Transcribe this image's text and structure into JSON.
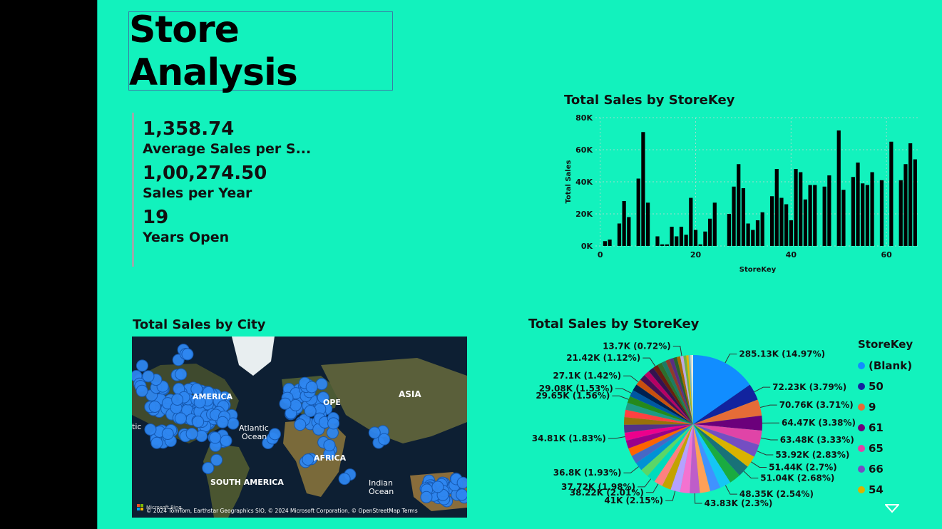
{
  "title": "Store Analysis",
  "kpis": [
    {
      "value": "1,358.74",
      "label": "Average Sales per S..."
    },
    {
      "value": "1,00,274.50",
      "label": "Sales per Year"
    },
    {
      "value": "19",
      "label": "Years Open"
    }
  ],
  "bar_title": "Total Sales by StoreKey",
  "map_title": "Total Sales by City",
  "map": {
    "labels": [
      "AMERICA",
      "Atlantic",
      "Ocean",
      "OPE",
      "ASIA",
      "AFRICA",
      "SOUTH AMERICA",
      "Indian",
      "Ocean",
      "tic"
    ],
    "credit": "© 2024 TomTom, Earthstar Geographics SIO, © 2024 Microsoft Corporation, © OpenStreetMap  Terms",
    "brand": "Microsoft Bing"
  },
  "pie_title": "Total Sales by StoreKey",
  "legend": {
    "title": "StoreKey",
    "items": [
      {
        "label": "(Blank)",
        "color": "#118DFF"
      },
      {
        "label": "50",
        "color": "#12239E"
      },
      {
        "label": "9",
        "color": "#E66C37"
      },
      {
        "label": "61",
        "color": "#6B007B"
      },
      {
        "label": "65",
        "color": "#E044A7"
      },
      {
        "label": "66",
        "color": "#744EC2"
      },
      {
        "label": "54",
        "color": "#D9B300"
      }
    ]
  },
  "chart_data": [
    {
      "type": "bar",
      "title": "Total Sales by StoreKey",
      "xlabel": "StoreKey",
      "ylabel": "Total Sales",
      "ylim": [
        0,
        80000
      ],
      "yticks": [
        "0K",
        "20K",
        "40K",
        "60K",
        "80K"
      ],
      "ytick_values": [
        0,
        20000,
        40000,
        60000,
        80000
      ],
      "xticks": [
        0,
        20,
        40,
        60
      ],
      "xlim": [
        -1,
        67
      ],
      "grid": true,
      "points": [
        [
          1,
          3000
        ],
        [
          2,
          4000
        ],
        [
          4,
          14000
        ],
        [
          5,
          28000
        ],
        [
          6,
          18000
        ],
        [
          8,
          42000
        ],
        [
          9,
          71000
        ],
        [
          10,
          27000
        ],
        [
          12,
          6000
        ],
        [
          13,
          1000
        ],
        [
          14,
          1000
        ],
        [
          15,
          12000
        ],
        [
          16,
          6000
        ],
        [
          17,
          12000
        ],
        [
          18,
          7000
        ],
        [
          19,
          30000
        ],
        [
          20,
          10000
        ],
        [
          21,
          1000
        ],
        [
          22,
          9000
        ],
        [
          23,
          17000
        ],
        [
          24,
          27000
        ],
        [
          27,
          20000
        ],
        [
          28,
          37000
        ],
        [
          29,
          51000
        ],
        [
          30,
          36000
        ],
        [
          31,
          14000
        ],
        [
          32,
          10000
        ],
        [
          33,
          16000
        ],
        [
          34,
          21000
        ],
        [
          36,
          31000
        ],
        [
          37,
          48000
        ],
        [
          38,
          30000
        ],
        [
          39,
          26000
        ],
        [
          40,
          16000
        ],
        [
          41,
          48000
        ],
        [
          42,
          46000
        ],
        [
          43,
          29000
        ],
        [
          44,
          38000
        ],
        [
          45,
          38000
        ],
        [
          47,
          37000
        ],
        [
          48,
          44000
        ],
        [
          50,
          72000
        ],
        [
          51,
          35000
        ],
        [
          53,
          43000
        ],
        [
          54,
          52000
        ],
        [
          55,
          39000
        ],
        [
          56,
          38000
        ],
        [
          57,
          46000
        ],
        [
          59,
          41000
        ],
        [
          61,
          65000
        ],
        [
          63,
          41000
        ],
        [
          64,
          51000
        ],
        [
          65,
          64000
        ],
        [
          66,
          54000
        ]
      ]
    },
    {
      "type": "pie",
      "title": "Total Sales by StoreKey",
      "slices": [
        {
          "label": "285.13K (14.97%)",
          "value": 285130,
          "color": "#118DFF"
        },
        {
          "label": "72.23K (3.79%)",
          "value": 72230,
          "color": "#12239E"
        },
        {
          "label": "70.76K (3.71%)",
          "value": 70760,
          "color": "#E66C37"
        },
        {
          "label": "64.47K (3.38%)",
          "value": 64470,
          "color": "#6B007B"
        },
        {
          "label": "63.48K (3.33%)",
          "value": 63480,
          "color": "#E044A7"
        },
        {
          "label": "53.92K (2.83%)",
          "value": 53920,
          "color": "#744EC2"
        },
        {
          "label": "51.44K (2.7%)",
          "value": 51440,
          "color": "#D9B300"
        },
        {
          "label": "51.04K (2.68%)",
          "value": 51040,
          "color": "#197278"
        },
        {
          "label": "",
          "value": 49500,
          "color": "#1AAB40"
        },
        {
          "label": "48.35K (2.54%)",
          "value": 48350,
          "color": "#15C6F4"
        },
        {
          "label": "",
          "value": 46000,
          "color": "#4092FF"
        },
        {
          "label": "",
          "value": 45000,
          "color": "#FFA058"
        },
        {
          "label": "43.83K (2.3%)",
          "value": 43830,
          "color": "#BE5DC9"
        },
        {
          "label": "",
          "value": 42500,
          "color": "#F472D0"
        },
        {
          "label": "41K (2.15%)",
          "value": 41000,
          "color": "#B5A1FF"
        },
        {
          "label": "",
          "value": 39500,
          "color": "#C4A200"
        },
        {
          "label": "38.22K (2.01%)",
          "value": 38220,
          "color": "#FF8080"
        },
        {
          "label": "37.72K (1.98%)",
          "value": 37720,
          "color": "#00DBBC"
        },
        {
          "label": "",
          "value": 37000,
          "color": "#5BD667"
        },
        {
          "label": "36.8K (1.93%)",
          "value": 36800,
          "color": "#0091D5"
        },
        {
          "label": "",
          "value": 36000,
          "color": "#4668C5"
        },
        {
          "label": "",
          "value": 35500,
          "color": "#FF6300"
        },
        {
          "label": "",
          "value": 35000,
          "color": "#99008A"
        },
        {
          "label": "34.81K (1.83%)",
          "value": 34810,
          "color": "#EC008C"
        },
        {
          "label": "",
          "value": 34000,
          "color": "#533285"
        },
        {
          "label": "",
          "value": 33000,
          "color": "#99700A"
        },
        {
          "label": "",
          "value": 32000,
          "color": "#FF4141"
        },
        {
          "label": "",
          "value": 31000,
          "color": "#1F9A85"
        },
        {
          "label": "29.65K (1.56%)",
          "value": 29650,
          "color": "#25891C"
        },
        {
          "label": "29.08K (1.53%)",
          "value": 29080,
          "color": "#0057A2"
        },
        {
          "label": "",
          "value": 28500,
          "color": "#002050"
        },
        {
          "label": "27.1K (1.42%)",
          "value": 27100,
          "color": "#C94F0F"
        },
        {
          "label": "",
          "value": 26000,
          "color": "#450F54"
        },
        {
          "label": "",
          "value": 25000,
          "color": "#B60064"
        },
        {
          "label": "",
          "value": 24000,
          "color": "#34124F"
        },
        {
          "label": "21.42K (1.12%)",
          "value": 21420,
          "color": "#6A1D0E"
        },
        {
          "label": "",
          "value": 20000,
          "color": "#2F6E2C"
        },
        {
          "label": "",
          "value": 19000,
          "color": "#1E7A63"
        },
        {
          "label": "",
          "value": 18000,
          "color": "#8E3B2C"
        },
        {
          "label": "",
          "value": 17000,
          "color": "#5A2D82"
        },
        {
          "label": "",
          "value": 16000,
          "color": "#2C5F2D"
        },
        {
          "label": "",
          "value": 15000,
          "color": "#A66800"
        },
        {
          "label": "13.7K (0.72%)",
          "value": 13700,
          "color": "#C0A7E0"
        },
        {
          "label": "",
          "value": 12000,
          "color": "#76B041"
        },
        {
          "label": "",
          "value": 10000,
          "color": "#E3B505"
        },
        {
          "label": "",
          "value": 8000,
          "color": "#7FB7BE"
        },
        {
          "label": "",
          "value": 6000,
          "color": "#D3D3D3"
        },
        {
          "label": "",
          "value": 4000,
          "color": "#F2E8CF"
        },
        {
          "label": "",
          "value": 2000,
          "color": "#FFFFFF"
        }
      ]
    }
  ]
}
